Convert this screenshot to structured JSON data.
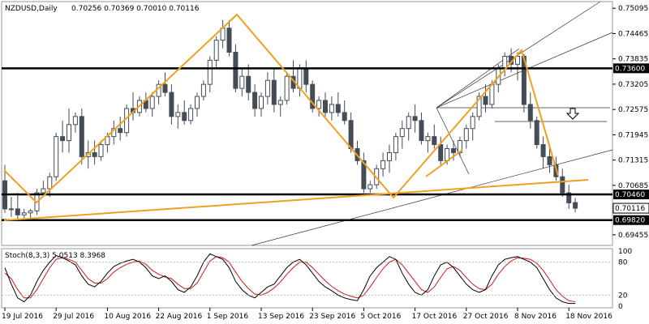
{
  "header": {
    "symbol": "NZDUSD,Daily",
    "ohlc": "0.70256 0.70369 0.70010 0.70116"
  },
  "stoch_panel": {
    "label": "Stoch(8,3,3) 5.0513 8.3968",
    "levels": [
      "100",
      "80",
      "20",
      "0"
    ]
  },
  "colors": {
    "bull": "#ffffff",
    "bear": "#444c57",
    "candle_outline": "#444c57",
    "zigzag": "#f0a020",
    "trend": "#000000",
    "stoch_main": "#000000",
    "stoch_signal": "#d01818",
    "price_tag_bg": "#000000",
    "current_tag_bg": "#ffffff"
  },
  "chart_data": {
    "type": "candlestick",
    "y_ticks": [
      "0.75095",
      "0.74465",
      "0.73835",
      "0.73205",
      "0.72575",
      "0.71945",
      "0.71315",
      "0.70685",
      "0.69455"
    ],
    "ylim": [
      0.6925,
      0.752
    ],
    "x_ticks": [
      "19 Jul 2016",
      "29 Jul 2016",
      "10 Aug 2016",
      "22 Aug 2016",
      "1 Sep 2016",
      "13 Sep 2016",
      "23 Sep 2016",
      "5 Oct 2016",
      "17 Oct 2016",
      "27 Oct 2016",
      "8 Nov 2016",
      "18 Nov 2016"
    ],
    "x_tick_index": [
      0,
      8,
      16,
      24,
      32,
      40,
      48,
      56,
      64,
      72,
      80,
      88
    ],
    "candles": [
      [
        0.708,
        0.712,
        0.7,
        0.701
      ],
      [
        0.701,
        0.704,
        0.699,
        0.701
      ],
      [
        0.701,
        0.705,
        0.6985,
        0.6995
      ],
      [
        0.6995,
        0.701,
        0.698,
        0.7
      ],
      [
        0.7,
        0.701,
        0.698,
        0.7005
      ],
      [
        0.7005,
        0.706,
        0.6995,
        0.705
      ],
      [
        0.705,
        0.708,
        0.704,
        0.706
      ],
      [
        0.706,
        0.71,
        0.704,
        0.709
      ],
      [
        0.709,
        0.72,
        0.708,
        0.719
      ],
      [
        0.719,
        0.723,
        0.715,
        0.718
      ],
      [
        0.718,
        0.726,
        0.715,
        0.722
      ],
      [
        0.722,
        0.725,
        0.72,
        0.724
      ],
      [
        0.724,
        0.726,
        0.712,
        0.714
      ],
      [
        0.714,
        0.718,
        0.711,
        0.715
      ],
      [
        0.715,
        0.718,
        0.712,
        0.714
      ],
      [
        0.714,
        0.718,
        0.713,
        0.717
      ],
      [
        0.717,
        0.72,
        0.715,
        0.719
      ],
      [
        0.719,
        0.723,
        0.717,
        0.721
      ],
      [
        0.721,
        0.724,
        0.718,
        0.72
      ],
      [
        0.72,
        0.727,
        0.719,
        0.726
      ],
      [
        0.726,
        0.73,
        0.723,
        0.725
      ],
      [
        0.725,
        0.729,
        0.724,
        0.728
      ],
      [
        0.728,
        0.73,
        0.725,
        0.726
      ],
      [
        0.726,
        0.73,
        0.724,
        0.729
      ],
      [
        0.729,
        0.733,
        0.727,
        0.732
      ],
      [
        0.732,
        0.735,
        0.729,
        0.73
      ],
      [
        0.73,
        0.732,
        0.722,
        0.724
      ],
      [
        0.724,
        0.727,
        0.721,
        0.725
      ],
      [
        0.725,
        0.728,
        0.722,
        0.723
      ],
      [
        0.723,
        0.727,
        0.722,
        0.726
      ],
      [
        0.726,
        0.73,
        0.724,
        0.729
      ],
      [
        0.729,
        0.733,
        0.728,
        0.732
      ],
      [
        0.732,
        0.739,
        0.73,
        0.738
      ],
      [
        0.738,
        0.744,
        0.736,
        0.743
      ],
      [
        0.743,
        0.748,
        0.741,
        0.746
      ],
      [
        0.746,
        0.748,
        0.739,
        0.74
      ],
      [
        0.74,
        0.742,
        0.73,
        0.731
      ],
      [
        0.731,
        0.736,
        0.729,
        0.734
      ],
      [
        0.734,
        0.737,
        0.728,
        0.73
      ],
      [
        0.73,
        0.732,
        0.724,
        0.726
      ],
      [
        0.726,
        0.73,
        0.724,
        0.729
      ],
      [
        0.729,
        0.735,
        0.727,
        0.733
      ],
      [
        0.733,
        0.736,
        0.725,
        0.727
      ],
      [
        0.727,
        0.729,
        0.724,
        0.728
      ],
      [
        0.728,
        0.735,
        0.727,
        0.734
      ],
      [
        0.734,
        0.738,
        0.73,
        0.731
      ],
      [
        0.731,
        0.737,
        0.729,
        0.736
      ],
      [
        0.736,
        0.738,
        0.73,
        0.732
      ],
      [
        0.732,
        0.733,
        0.725,
        0.726
      ],
      [
        0.726,
        0.729,
        0.724,
        0.728
      ],
      [
        0.728,
        0.73,
        0.724,
        0.725
      ],
      [
        0.725,
        0.729,
        0.723,
        0.727
      ],
      [
        0.727,
        0.73,
        0.724,
        0.725
      ],
      [
        0.725,
        0.728,
        0.722,
        0.723
      ],
      [
        0.723,
        0.725,
        0.715,
        0.716
      ],
      [
        0.716,
        0.718,
        0.712,
        0.713
      ],
      [
        0.713,
        0.715,
        0.705,
        0.706
      ],
      [
        0.706,
        0.708,
        0.705,
        0.707
      ],
      [
        0.707,
        0.712,
        0.706,
        0.711
      ],
      [
        0.711,
        0.715,
        0.709,
        0.713
      ],
      [
        0.713,
        0.717,
        0.71,
        0.715
      ],
      [
        0.715,
        0.72,
        0.713,
        0.719
      ],
      [
        0.719,
        0.723,
        0.716,
        0.721
      ],
      [
        0.721,
        0.725,
        0.718,
        0.724
      ],
      [
        0.724,
        0.727,
        0.72,
        0.723
      ],
      [
        0.723,
        0.725,
        0.717,
        0.718
      ],
      [
        0.718,
        0.72,
        0.715,
        0.719
      ],
      [
        0.719,
        0.722,
        0.716,
        0.717
      ],
      [
        0.717,
        0.719,
        0.712,
        0.713
      ],
      [
        0.713,
        0.717,
        0.712,
        0.716
      ],
      [
        0.716,
        0.718,
        0.713,
        0.715
      ],
      [
        0.715,
        0.719,
        0.714,
        0.718
      ],
      [
        0.718,
        0.722,
        0.716,
        0.721
      ],
      [
        0.721,
        0.725,
        0.718,
        0.724
      ],
      [
        0.724,
        0.73,
        0.723,
        0.729
      ],
      [
        0.729,
        0.732,
        0.725,
        0.727
      ],
      [
        0.727,
        0.733,
        0.726,
        0.732
      ],
      [
        0.732,
        0.737,
        0.73,
        0.736
      ],
      [
        0.736,
        0.74,
        0.734,
        0.739
      ],
      [
        0.739,
        0.741,
        0.735,
        0.737
      ],
      [
        0.737,
        0.74,
        0.733,
        0.739
      ],
      [
        0.739,
        0.7395,
        0.725,
        0.727
      ],
      [
        0.727,
        0.73,
        0.721,
        0.723
      ],
      [
        0.723,
        0.724,
        0.716,
        0.717
      ],
      [
        0.717,
        0.719,
        0.711,
        0.714
      ],
      [
        0.714,
        0.716,
        0.71,
        0.712
      ],
      [
        0.712,
        0.714,
        0.708,
        0.709
      ],
      [
        0.709,
        0.711,
        0.704,
        0.705
      ],
      [
        0.705,
        0.707,
        0.701,
        0.7025
      ],
      [
        0.70256,
        0.70369,
        0.7001,
        0.70116
      ]
    ],
    "stoch": {
      "main": [
        70,
        40,
        15,
        8,
        20,
        45,
        65,
        80,
        92,
        88,
        82,
        75,
        55,
        40,
        35,
        45,
        60,
        72,
        78,
        82,
        85,
        80,
        70,
        55,
        50,
        55,
        45,
        30,
        25,
        35,
        55,
        80,
        95,
        90,
        85,
        70,
        45,
        30,
        20,
        15,
        25,
        35,
        40,
        55,
        70,
        80,
        85,
        75,
        60,
        45,
        35,
        28,
        20,
        15,
        12,
        10,
        30,
        55,
        70,
        80,
        90,
        85,
        60,
        40,
        25,
        20,
        30,
        55,
        75,
        80,
        70,
        55,
        40,
        30,
        25,
        30,
        55,
        75,
        85,
        88,
        90,
        85,
        80,
        70,
        50,
        30,
        15,
        8,
        5,
        5
      ],
      "signal": [
        60,
        50,
        30,
        15,
        15,
        30,
        50,
        70,
        85,
        88,
        85,
        80,
        65,
        50,
        42,
        42,
        50,
        62,
        70,
        76,
        80,
        82,
        76,
        65,
        58,
        53,
        50,
        40,
        32,
        32,
        42,
        62,
        82,
        90,
        88,
        80,
        62,
        45,
        32,
        22,
        20,
        25,
        33,
        44,
        58,
        70,
        80,
        80,
        70,
        58,
        46,
        36,
        28,
        22,
        18,
        15,
        20,
        35,
        52,
        68,
        80,
        85,
        75,
        60,
        45,
        30,
        25,
        35,
        52,
        68,
        72,
        65,
        52,
        40,
        32,
        30,
        40,
        58,
        72,
        82,
        88,
        87,
        85,
        78,
        65,
        48,
        30,
        18,
        10,
        8
      ]
    },
    "level_tags": [
      "0.73600",
      "0.70460",
      "0.69820"
    ],
    "current_tag": "0.70116"
  }
}
